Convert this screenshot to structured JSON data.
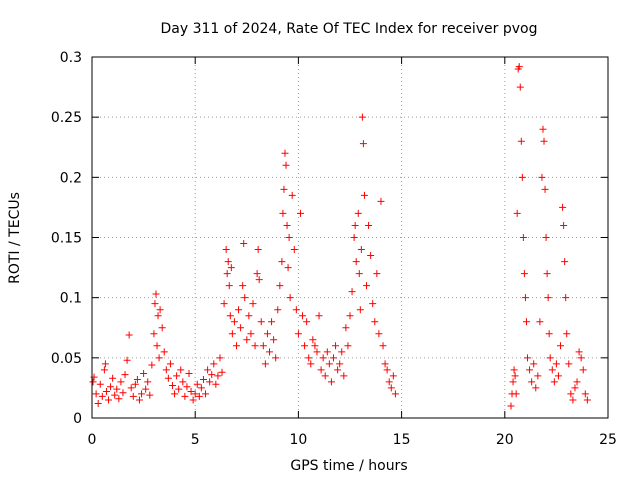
{
  "chart_data": {
    "type": "scatter",
    "title": "Day 311 of 2024, Rate Of TEC Index for receiver pvog",
    "xlabel": "GPS time / hours",
    "ylabel": "ROTI / TECUs",
    "xlim": [
      0,
      25
    ],
    "ylim": [
      0,
      0.3
    ],
    "xticks": [
      0,
      5,
      10,
      15,
      20,
      25
    ],
    "xtick_labels": [
      "0",
      "5",
      "10",
      "15",
      "20",
      "25"
    ],
    "yticks": [
      0,
      0.05,
      0.1,
      0.15,
      0.2,
      0.25,
      0.3
    ],
    "ytick_labels": [
      "0",
      "0.05",
      "0.1",
      "0.15",
      "0.2",
      "0.25",
      "0.3"
    ],
    "grid": true,
    "marker": "plus",
    "color": "#ff0000",
    "series": [
      {
        "name": "ROTI",
        "points": [
          [
            0.05,
            0.03
          ],
          [
            0.1,
            0.034
          ],
          [
            0.2,
            0.02
          ],
          [
            0.3,
            0.012
          ],
          [
            0.4,
            0.028
          ],
          [
            0.5,
            0.018
          ],
          [
            0.6,
            0.04
          ],
          [
            0.65,
            0.045
          ],
          [
            0.7,
            0.022
          ],
          [
            0.8,
            0.015
          ],
          [
            0.9,
            0.026
          ],
          [
            1.0,
            0.033
          ],
          [
            1.1,
            0.019
          ],
          [
            1.2,
            0.024
          ],
          [
            1.3,
            0.016
          ],
          [
            1.4,
            0.03
          ],
          [
            1.5,
            0.021
          ],
          [
            1.6,
            0.036
          ],
          [
            1.7,
            0.048
          ],
          [
            1.8,
            0.069
          ],
          [
            1.9,
            0.025
          ],
          [
            2.0,
            0.018
          ],
          [
            2.1,
            0.028
          ],
          [
            2.2,
            0.032
          ],
          [
            2.3,
            0.015
          ],
          [
            2.4,
            0.02
          ],
          [
            2.5,
            0.037
          ],
          [
            2.6,
            0.024
          ],
          [
            2.7,
            0.03
          ],
          [
            2.8,
            0.019
          ],
          [
            2.9,
            0.044
          ],
          [
            3.0,
            0.07
          ],
          [
            3.05,
            0.095
          ],
          [
            3.1,
            0.103
          ],
          [
            3.15,
            0.06
          ],
          [
            3.2,
            0.085
          ],
          [
            3.25,
            0.05
          ],
          [
            3.3,
            0.09
          ],
          [
            3.4,
            0.075
          ],
          [
            3.5,
            0.055
          ],
          [
            3.6,
            0.04
          ],
          [
            3.7,
            0.033
          ],
          [
            3.8,
            0.045
          ],
          [
            3.9,
            0.027
          ],
          [
            4.0,
            0.02
          ],
          [
            4.1,
            0.035
          ],
          [
            4.2,
            0.024
          ],
          [
            4.3,
            0.04
          ],
          [
            4.4,
            0.03
          ],
          [
            4.5,
            0.018
          ],
          [
            4.6,
            0.026
          ],
          [
            4.7,
            0.037
          ],
          [
            4.8,
            0.022
          ],
          [
            4.9,
            0.015
          ],
          [
            5.0,
            0.02
          ],
          [
            5.1,
            0.028
          ],
          [
            5.2,
            0.018
          ],
          [
            5.3,
            0.025
          ],
          [
            5.4,
            0.032
          ],
          [
            5.5,
            0.02
          ],
          [
            5.6,
            0.04
          ],
          [
            5.7,
            0.03
          ],
          [
            5.8,
            0.036
          ],
          [
            5.9,
            0.045
          ],
          [
            6.0,
            0.028
          ],
          [
            6.1,
            0.035
          ],
          [
            6.2,
            0.05
          ],
          [
            6.3,
            0.038
          ],
          [
            6.4,
            0.095
          ],
          [
            6.5,
            0.14
          ],
          [
            6.55,
            0.12
          ],
          [
            6.6,
            0.13
          ],
          [
            6.65,
            0.11
          ],
          [
            6.7,
            0.085
          ],
          [
            6.75,
            0.125
          ],
          [
            6.8,
            0.07
          ],
          [
            6.9,
            0.08
          ],
          [
            7.0,
            0.06
          ],
          [
            7.1,
            0.09
          ],
          [
            7.2,
            0.075
          ],
          [
            7.3,
            0.11
          ],
          [
            7.35,
            0.145
          ],
          [
            7.4,
            0.1
          ],
          [
            7.5,
            0.065
          ],
          [
            7.6,
            0.085
          ],
          [
            7.7,
            0.07
          ],
          [
            7.8,
            0.095
          ],
          [
            7.9,
            0.06
          ],
          [
            8.0,
            0.12
          ],
          [
            8.05,
            0.14
          ],
          [
            8.1,
            0.115
          ],
          [
            8.2,
            0.08
          ],
          [
            8.3,
            0.06
          ],
          [
            8.4,
            0.045
          ],
          [
            8.5,
            0.07
          ],
          [
            8.6,
            0.055
          ],
          [
            8.7,
            0.08
          ],
          [
            8.8,
            0.065
          ],
          [
            8.9,
            0.05
          ],
          [
            9.0,
            0.09
          ],
          [
            9.1,
            0.11
          ],
          [
            9.2,
            0.13
          ],
          [
            9.25,
            0.17
          ],
          [
            9.3,
            0.19
          ],
          [
            9.35,
            0.22
          ],
          [
            9.4,
            0.21
          ],
          [
            9.45,
            0.16
          ],
          [
            9.5,
            0.125
          ],
          [
            9.55,
            0.15
          ],
          [
            9.6,
            0.1
          ],
          [
            9.7,
            0.185
          ],
          [
            9.8,
            0.14
          ],
          [
            9.9,
            0.09
          ],
          [
            10.0,
            0.07
          ],
          [
            10.1,
            0.17
          ],
          [
            10.2,
            0.085
          ],
          [
            10.3,
            0.06
          ],
          [
            10.4,
            0.08
          ],
          [
            10.5,
            0.05
          ],
          [
            10.6,
            0.045
          ],
          [
            10.7,
            0.065
          ],
          [
            10.8,
            0.06
          ],
          [
            10.9,
            0.055
          ],
          [
            11.0,
            0.085
          ],
          [
            11.1,
            0.04
          ],
          [
            11.2,
            0.05
          ],
          [
            11.3,
            0.035
          ],
          [
            11.4,
            0.055
          ],
          [
            11.5,
            0.045
          ],
          [
            11.6,
            0.03
          ],
          [
            11.7,
            0.05
          ],
          [
            11.8,
            0.06
          ],
          [
            11.9,
            0.04
          ],
          [
            12.0,
            0.045
          ],
          [
            12.1,
            0.055
          ],
          [
            12.2,
            0.035
          ],
          [
            12.3,
            0.075
          ],
          [
            12.4,
            0.06
          ],
          [
            12.5,
            0.085
          ],
          [
            12.6,
            0.105
          ],
          [
            12.7,
            0.15
          ],
          [
            12.75,
            0.16
          ],
          [
            12.8,
            0.13
          ],
          [
            12.9,
            0.17
          ],
          [
            12.95,
            0.12
          ],
          [
            13.0,
            0.09
          ],
          [
            13.05,
            0.14
          ],
          [
            13.1,
            0.25
          ],
          [
            13.15,
            0.228
          ],
          [
            13.2,
            0.185
          ],
          [
            13.3,
            0.11
          ],
          [
            13.4,
            0.16
          ],
          [
            13.5,
            0.135
          ],
          [
            13.6,
            0.095
          ],
          [
            13.7,
            0.08
          ],
          [
            13.8,
            0.12
          ],
          [
            13.9,
            0.07
          ],
          [
            14.0,
            0.18
          ],
          [
            14.1,
            0.06
          ],
          [
            14.2,
            0.045
          ],
          [
            14.3,
            0.04
          ],
          [
            14.4,
            0.03
          ],
          [
            14.5,
            0.025
          ],
          [
            14.6,
            0.035
          ],
          [
            14.7,
            0.02
          ],
          [
            20.3,
            0.01
          ],
          [
            20.35,
            0.02
          ],
          [
            20.4,
            0.03
          ],
          [
            20.45,
            0.04
          ],
          [
            20.5,
            0.035
          ],
          [
            20.55,
            0.02
          ],
          [
            20.6,
            0.17
          ],
          [
            20.65,
            0.29
          ],
          [
            20.7,
            0.292
          ],
          [
            20.75,
            0.275
          ],
          [
            20.8,
            0.23
          ],
          [
            20.85,
            0.2
          ],
          [
            20.9,
            0.15
          ],
          [
            20.95,
            0.12
          ],
          [
            21.0,
            0.1
          ],
          [
            21.05,
            0.08
          ],
          [
            21.1,
            0.05
          ],
          [
            21.2,
            0.04
          ],
          [
            21.3,
            0.03
          ],
          [
            21.4,
            0.045
          ],
          [
            21.5,
            0.025
          ],
          [
            21.6,
            0.035
          ],
          [
            21.7,
            0.08
          ],
          [
            21.8,
            0.2
          ],
          [
            21.85,
            0.24
          ],
          [
            21.9,
            0.23
          ],
          [
            21.95,
            0.19
          ],
          [
            22.0,
            0.15
          ],
          [
            22.05,
            0.12
          ],
          [
            22.1,
            0.1
          ],
          [
            22.15,
            0.07
          ],
          [
            22.2,
            0.05
          ],
          [
            22.3,
            0.04
          ],
          [
            22.4,
            0.03
          ],
          [
            22.5,
            0.045
          ],
          [
            22.6,
            0.035
          ],
          [
            22.7,
            0.06
          ],
          [
            22.8,
            0.175
          ],
          [
            22.85,
            0.16
          ],
          [
            22.9,
            0.13
          ],
          [
            22.95,
            0.1
          ],
          [
            23.0,
            0.07
          ],
          [
            23.1,
            0.045
          ],
          [
            23.2,
            0.02
          ],
          [
            23.3,
            0.015
          ],
          [
            23.4,
            0.025
          ],
          [
            23.5,
            0.03
          ],
          [
            23.6,
            0.055
          ],
          [
            23.7,
            0.05
          ],
          [
            23.8,
            0.04
          ],
          [
            23.9,
            0.02
          ],
          [
            24.0,
            0.015
          ]
        ]
      }
    ]
  }
}
